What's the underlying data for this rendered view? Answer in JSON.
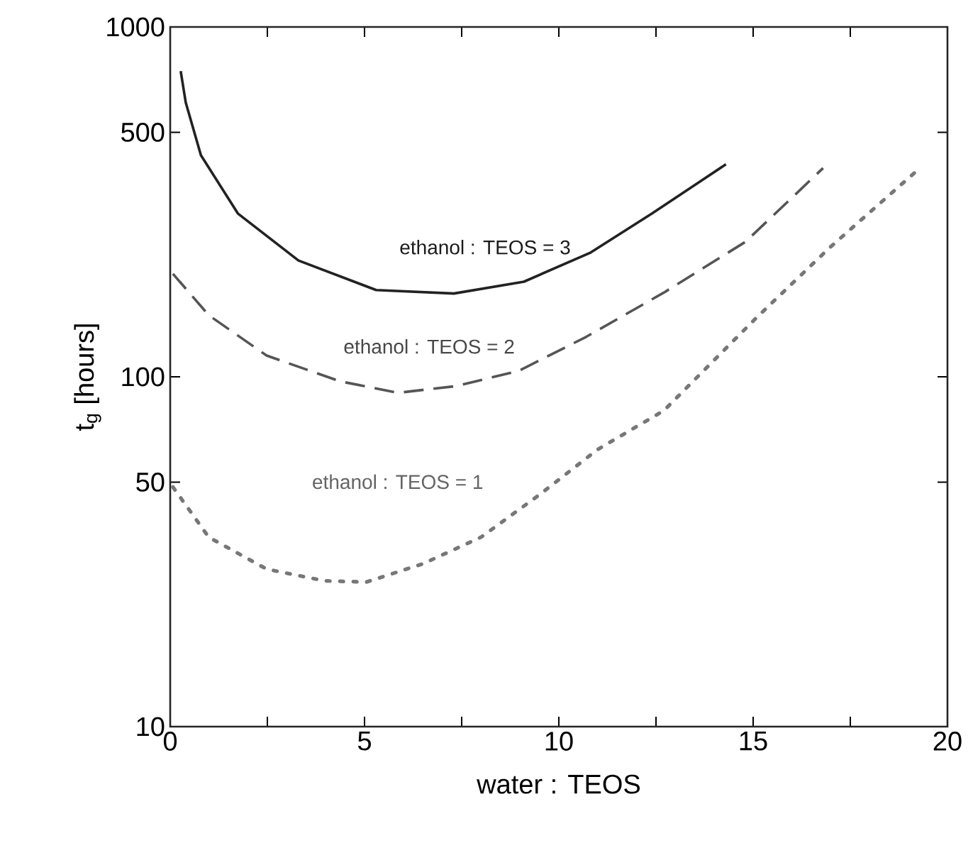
{
  "chart_data": {
    "type": "line",
    "xlabel": "water : TEOS",
    "ylabel": "t$_{g}$ [hours]",
    "log": "y",
    "xlim": [
      0,
      20
    ],
    "ylim": [
      10,
      1000
    ],
    "xticks": [
      0,
      {
        "value": 2.5,
        "label": null
      },
      5,
      {
        "value": 7.5,
        "label": null
      },
      10,
      {
        "value": 12.5,
        "label": null
      },
      15,
      {
        "value": 17.5,
        "label": null
      },
      20
    ],
    "yticks": [
      10,
      50,
      100,
      500,
      1000
    ],
    "grid": false,
    "legend": false,
    "series": [
      {
        "name": "ethanol : TEOS = 3",
        "color": "#222222",
        "line_style": "solid",
        "x": [
          0.27,
          0.4,
          0.79,
          1.74,
          3.3,
          5.3,
          7.3,
          9.1,
          10.8,
          12.4,
          14.3
        ],
        "values": [
          748,
          608,
          430,
          293,
          215,
          177,
          173,
          187,
          226,
          293,
          405
        ]
      },
      {
        "name": "ethanol : TEOS = 2",
        "color": "#555555",
        "line_style": "dashed",
        "x": [
          0.07,
          0.99,
          2.48,
          4.38,
          5.86,
          7.35,
          8.97,
          10.7,
          12.7,
          14.8,
          16.8
        ],
        "values": [
          197,
          150,
          115,
          97,
          90,
          94,
          104,
          130,
          174,
          243,
          395
        ]
      },
      {
        "name": "ethanol : TEOS = 1",
        "color": "#777777",
        "line_style": "dotted",
        "x": [
          0.07,
          0.99,
          2.48,
          3.97,
          5.05,
          6.5,
          8.0,
          9.5,
          11.0,
          12.7,
          15.07,
          16.97,
          19.2
        ],
        "values": [
          48.4,
          34.8,
          28.2,
          26.1,
          25.9,
          29.2,
          34.8,
          46,
          62,
          80,
          147,
          234,
          387
        ]
      }
    ]
  }
}
